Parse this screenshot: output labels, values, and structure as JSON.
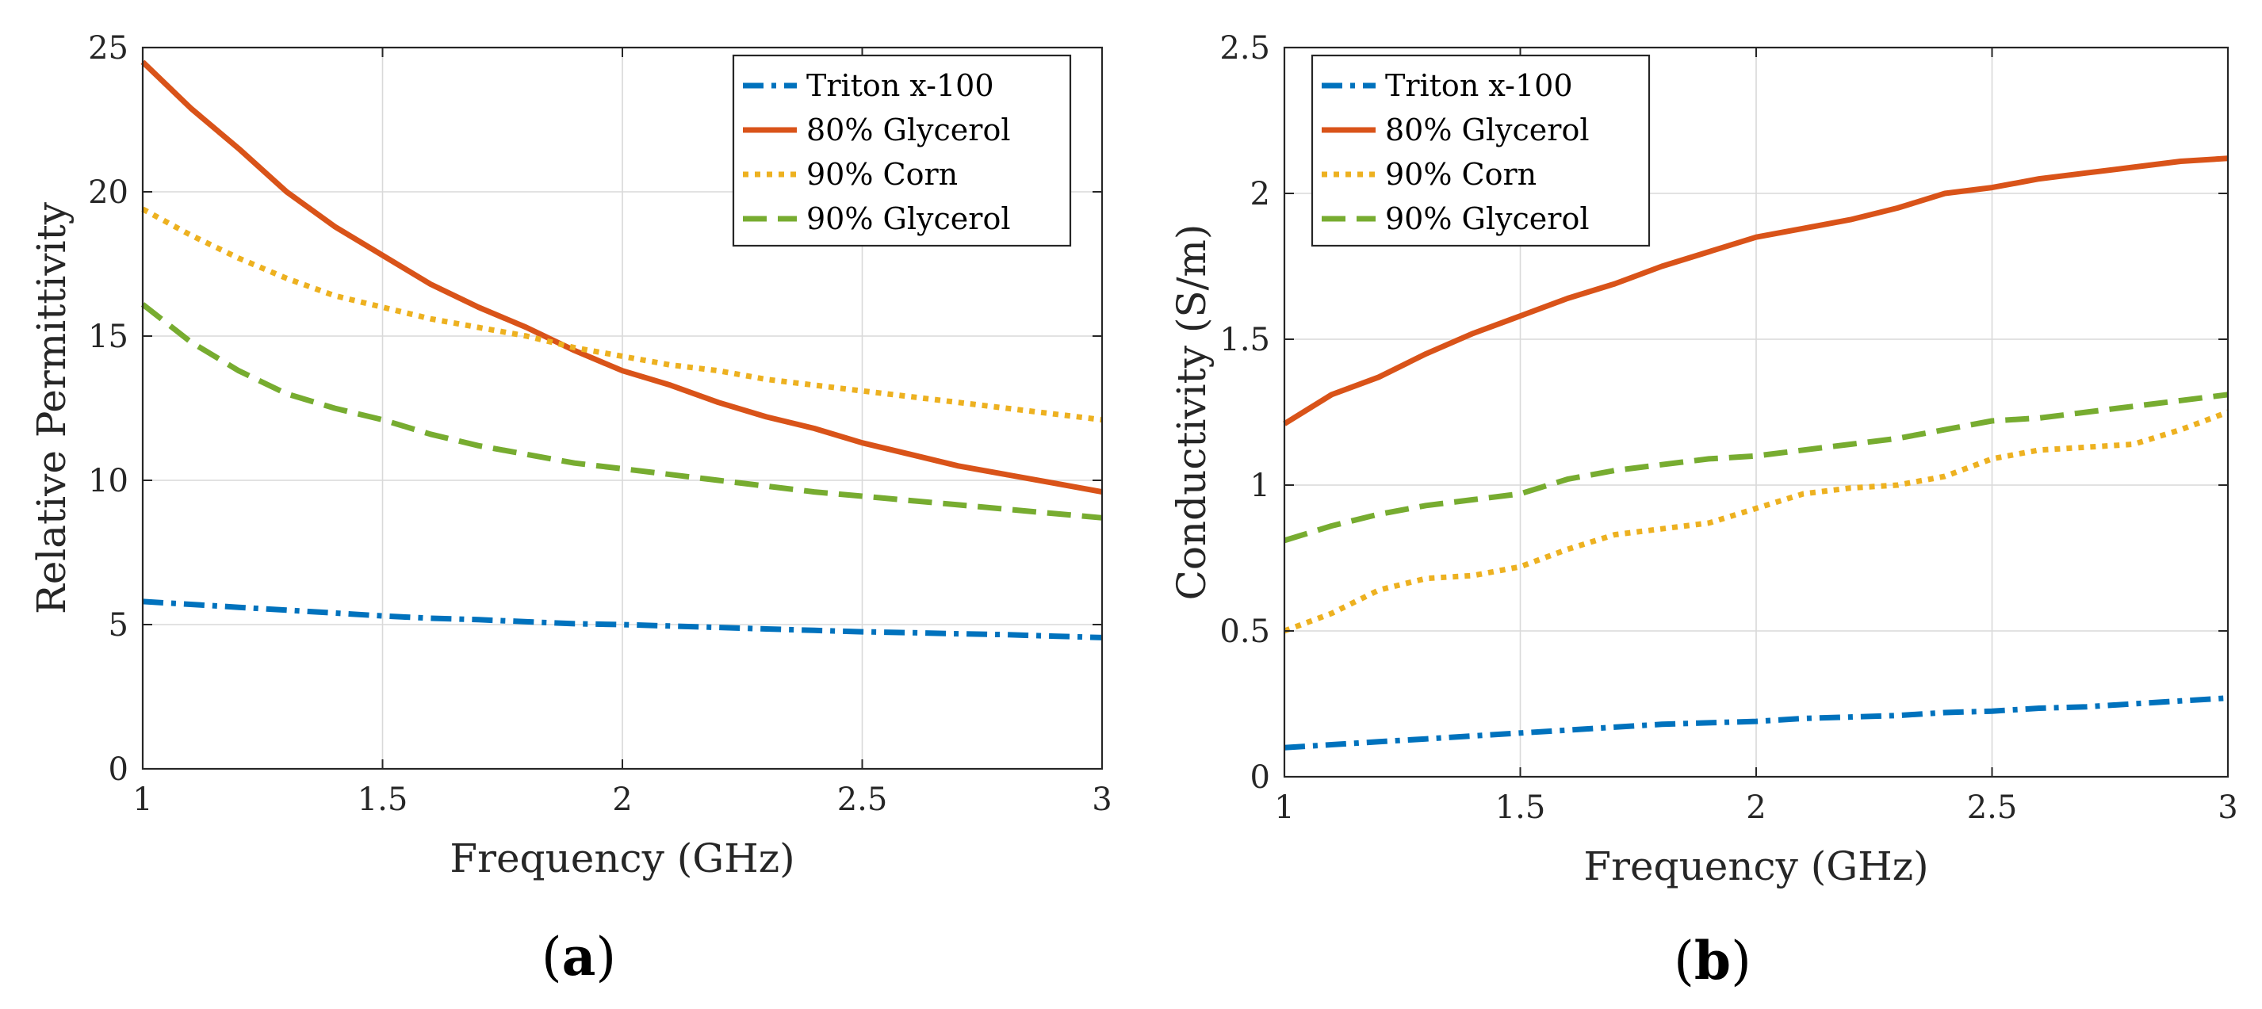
{
  "chart_data": [
    {
      "type": "line",
      "panel_label": "a",
      "title": "",
      "xlabel": "Frequency (GHz)",
      "ylabel": "Relative Permittivity",
      "xlim": [
        1,
        3
      ],
      "ylim": [
        0,
        25
      ],
      "xticks": [
        1,
        1.5,
        2,
        2.5,
        3
      ],
      "xtick_labels": [
        "1",
        "1.5",
        "2",
        "2.5",
        "3"
      ],
      "yticks": [
        0,
        5,
        10,
        15,
        20,
        25
      ],
      "ytick_labels": [
        "0",
        "5",
        "10",
        "15",
        "20",
        "25"
      ],
      "grid": true,
      "legend_position": "top-right",
      "x": [
        1.0,
        1.1,
        1.2,
        1.3,
        1.4,
        1.5,
        1.6,
        1.7,
        1.8,
        1.9,
        2.0,
        2.1,
        2.2,
        2.3,
        2.4,
        2.5,
        2.6,
        2.7,
        2.8,
        2.9,
        3.0
      ],
      "series": [
        {
          "name": "Triton x-100",
          "color": "#0072BD",
          "style": "dashdot",
          "values": [
            5.8,
            5.7,
            5.6,
            5.5,
            5.4,
            5.3,
            5.22,
            5.17,
            5.1,
            5.03,
            5.0,
            4.95,
            4.9,
            4.85,
            4.8,
            4.75,
            4.72,
            4.68,
            4.65,
            4.6,
            4.55
          ]
        },
        {
          "name": "80% Glycerol",
          "color": "#D95319",
          "style": "solid",
          "values": [
            24.5,
            22.9,
            21.5,
            20.0,
            18.8,
            17.8,
            16.8,
            16.0,
            15.3,
            14.5,
            13.8,
            13.3,
            12.7,
            12.2,
            11.8,
            11.3,
            10.9,
            10.5,
            10.2,
            9.9,
            9.6
          ]
        },
        {
          "name": "90% Corn",
          "color": "#EDB120",
          "style": "dotted",
          "values": [
            19.4,
            18.5,
            17.7,
            17.0,
            16.4,
            16.0,
            15.6,
            15.3,
            15.0,
            14.6,
            14.3,
            14.0,
            13.8,
            13.5,
            13.3,
            13.1,
            12.9,
            12.7,
            12.5,
            12.3,
            12.1
          ]
        },
        {
          "name": "90% Glycerol",
          "color": "#77AC30",
          "style": "dashed",
          "values": [
            16.1,
            14.8,
            13.8,
            13.0,
            12.5,
            12.1,
            11.6,
            11.2,
            10.9,
            10.6,
            10.4,
            10.2,
            10.0,
            9.8,
            9.6,
            9.45,
            9.3,
            9.15,
            9.0,
            8.85,
            8.7
          ]
        }
      ]
    },
    {
      "type": "line",
      "panel_label": "b",
      "title": "",
      "xlabel": "Frequency (GHz)",
      "ylabel": "Conductivity (S/m)",
      "xlim": [
        1,
        3
      ],
      "ylim": [
        0,
        2.5
      ],
      "xticks": [
        1,
        1.5,
        2,
        2.5,
        3
      ],
      "xtick_labels": [
        "1",
        "1.5",
        "2",
        "2.5",
        "3"
      ],
      "yticks": [
        0,
        0.5,
        1,
        1.5,
        2,
        2.5
      ],
      "ytick_labels": [
        "0",
        "0.5",
        "1",
        "1.5",
        "2",
        "2.5"
      ],
      "grid": true,
      "legend_position": "top-left",
      "x": [
        1.0,
        1.1,
        1.2,
        1.3,
        1.4,
        1.5,
        1.6,
        1.7,
        1.8,
        1.9,
        2.0,
        2.1,
        2.2,
        2.3,
        2.4,
        2.5,
        2.6,
        2.7,
        2.8,
        2.9,
        3.0
      ],
      "series": [
        {
          "name": "Triton x-100",
          "color": "#0072BD",
          "style": "dashdot",
          "values": [
            0.1,
            0.11,
            0.12,
            0.13,
            0.14,
            0.15,
            0.16,
            0.17,
            0.18,
            0.185,
            0.19,
            0.2,
            0.205,
            0.21,
            0.22,
            0.225,
            0.235,
            0.24,
            0.25,
            0.26,
            0.27
          ]
        },
        {
          "name": "80% Glycerol",
          "color": "#D95319",
          "style": "solid",
          "values": [
            1.21,
            1.31,
            1.37,
            1.45,
            1.52,
            1.58,
            1.64,
            1.69,
            1.75,
            1.8,
            1.85,
            1.88,
            1.91,
            1.95,
            2.0,
            2.02,
            2.05,
            2.07,
            2.09,
            2.11,
            2.12
          ]
        },
        {
          "name": "90% Corn",
          "color": "#EDB120",
          "style": "dotted",
          "values": [
            0.5,
            0.56,
            0.64,
            0.68,
            0.69,
            0.72,
            0.78,
            0.83,
            0.85,
            0.87,
            0.92,
            0.97,
            0.99,
            1.0,
            1.03,
            1.09,
            1.12,
            1.13,
            1.14,
            1.19,
            1.25
          ]
        },
        {
          "name": "90% Glycerol",
          "color": "#77AC30",
          "style": "dashed",
          "values": [
            0.81,
            0.86,
            0.9,
            0.93,
            0.95,
            0.97,
            1.02,
            1.05,
            1.07,
            1.09,
            1.1,
            1.12,
            1.14,
            1.16,
            1.19,
            1.22,
            1.23,
            1.25,
            1.27,
            1.29,
            1.31
          ]
        }
      ]
    }
  ]
}
